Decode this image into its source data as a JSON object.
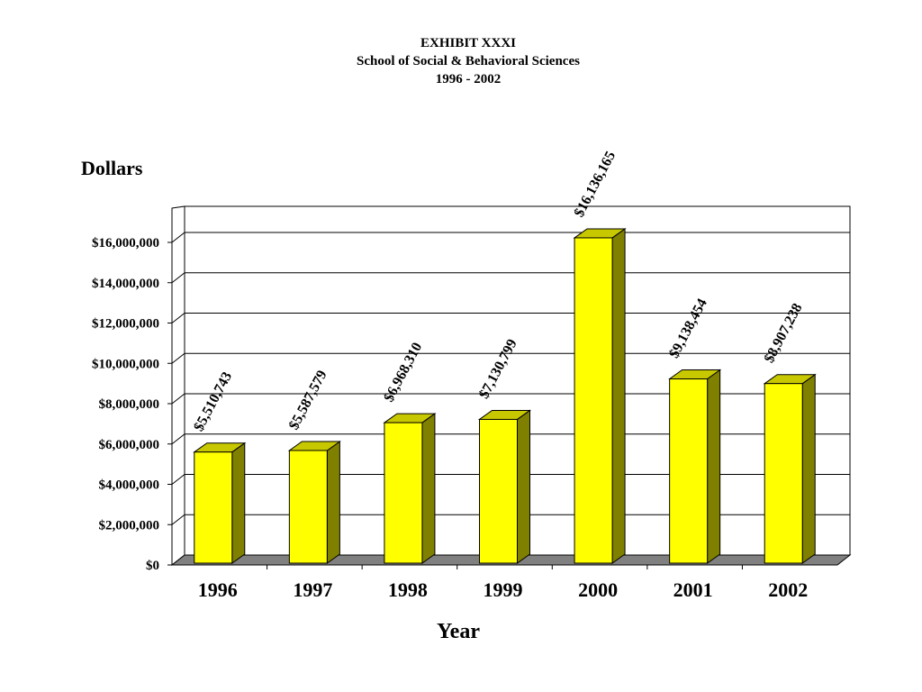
{
  "header": {
    "exhibit": "EXHIBIT XXXI",
    "subtitle": "School of Social & Behavioral Sciences",
    "range": "1996 - 2002"
  },
  "chart_data": {
    "type": "bar",
    "title": "EXHIBIT XXXI",
    "subtitle": "School of Social & Behavioral Sciences 1996 - 2002",
    "xlabel": "Year",
    "ylabel": "Dollars",
    "categories": [
      "1996",
      "1997",
      "1998",
      "1999",
      "2000",
      "2001",
      "2002"
    ],
    "values": [
      5510743,
      5587579,
      6968310,
      7130799,
      16136165,
      9138454,
      8907238
    ],
    "data_labels": [
      "$5,510,743",
      "$5,587,579",
      "$6,968,310",
      "$7,130,799",
      "$16,136,165",
      "$9,138,454",
      "$8,907,238"
    ],
    "y_ticks": [
      0,
      2000000,
      4000000,
      6000000,
      8000000,
      10000000,
      12000000,
      14000000,
      16000000
    ],
    "y_tick_labels": [
      "$0",
      "$2,000,000",
      "$4,000,000",
      "$6,000,000",
      "$8,000,000",
      "$10,000,000",
      "$12,000,000",
      "$14,000,000",
      "$16,000,000"
    ],
    "ylim": [
      0,
      16000000
    ],
    "grid": true,
    "style": "3d",
    "colors": {
      "bar_front": "#ffff00",
      "bar_top": "#c8c800",
      "bar_side": "#808000",
      "floor": "#808080",
      "grid": "#000000"
    }
  }
}
